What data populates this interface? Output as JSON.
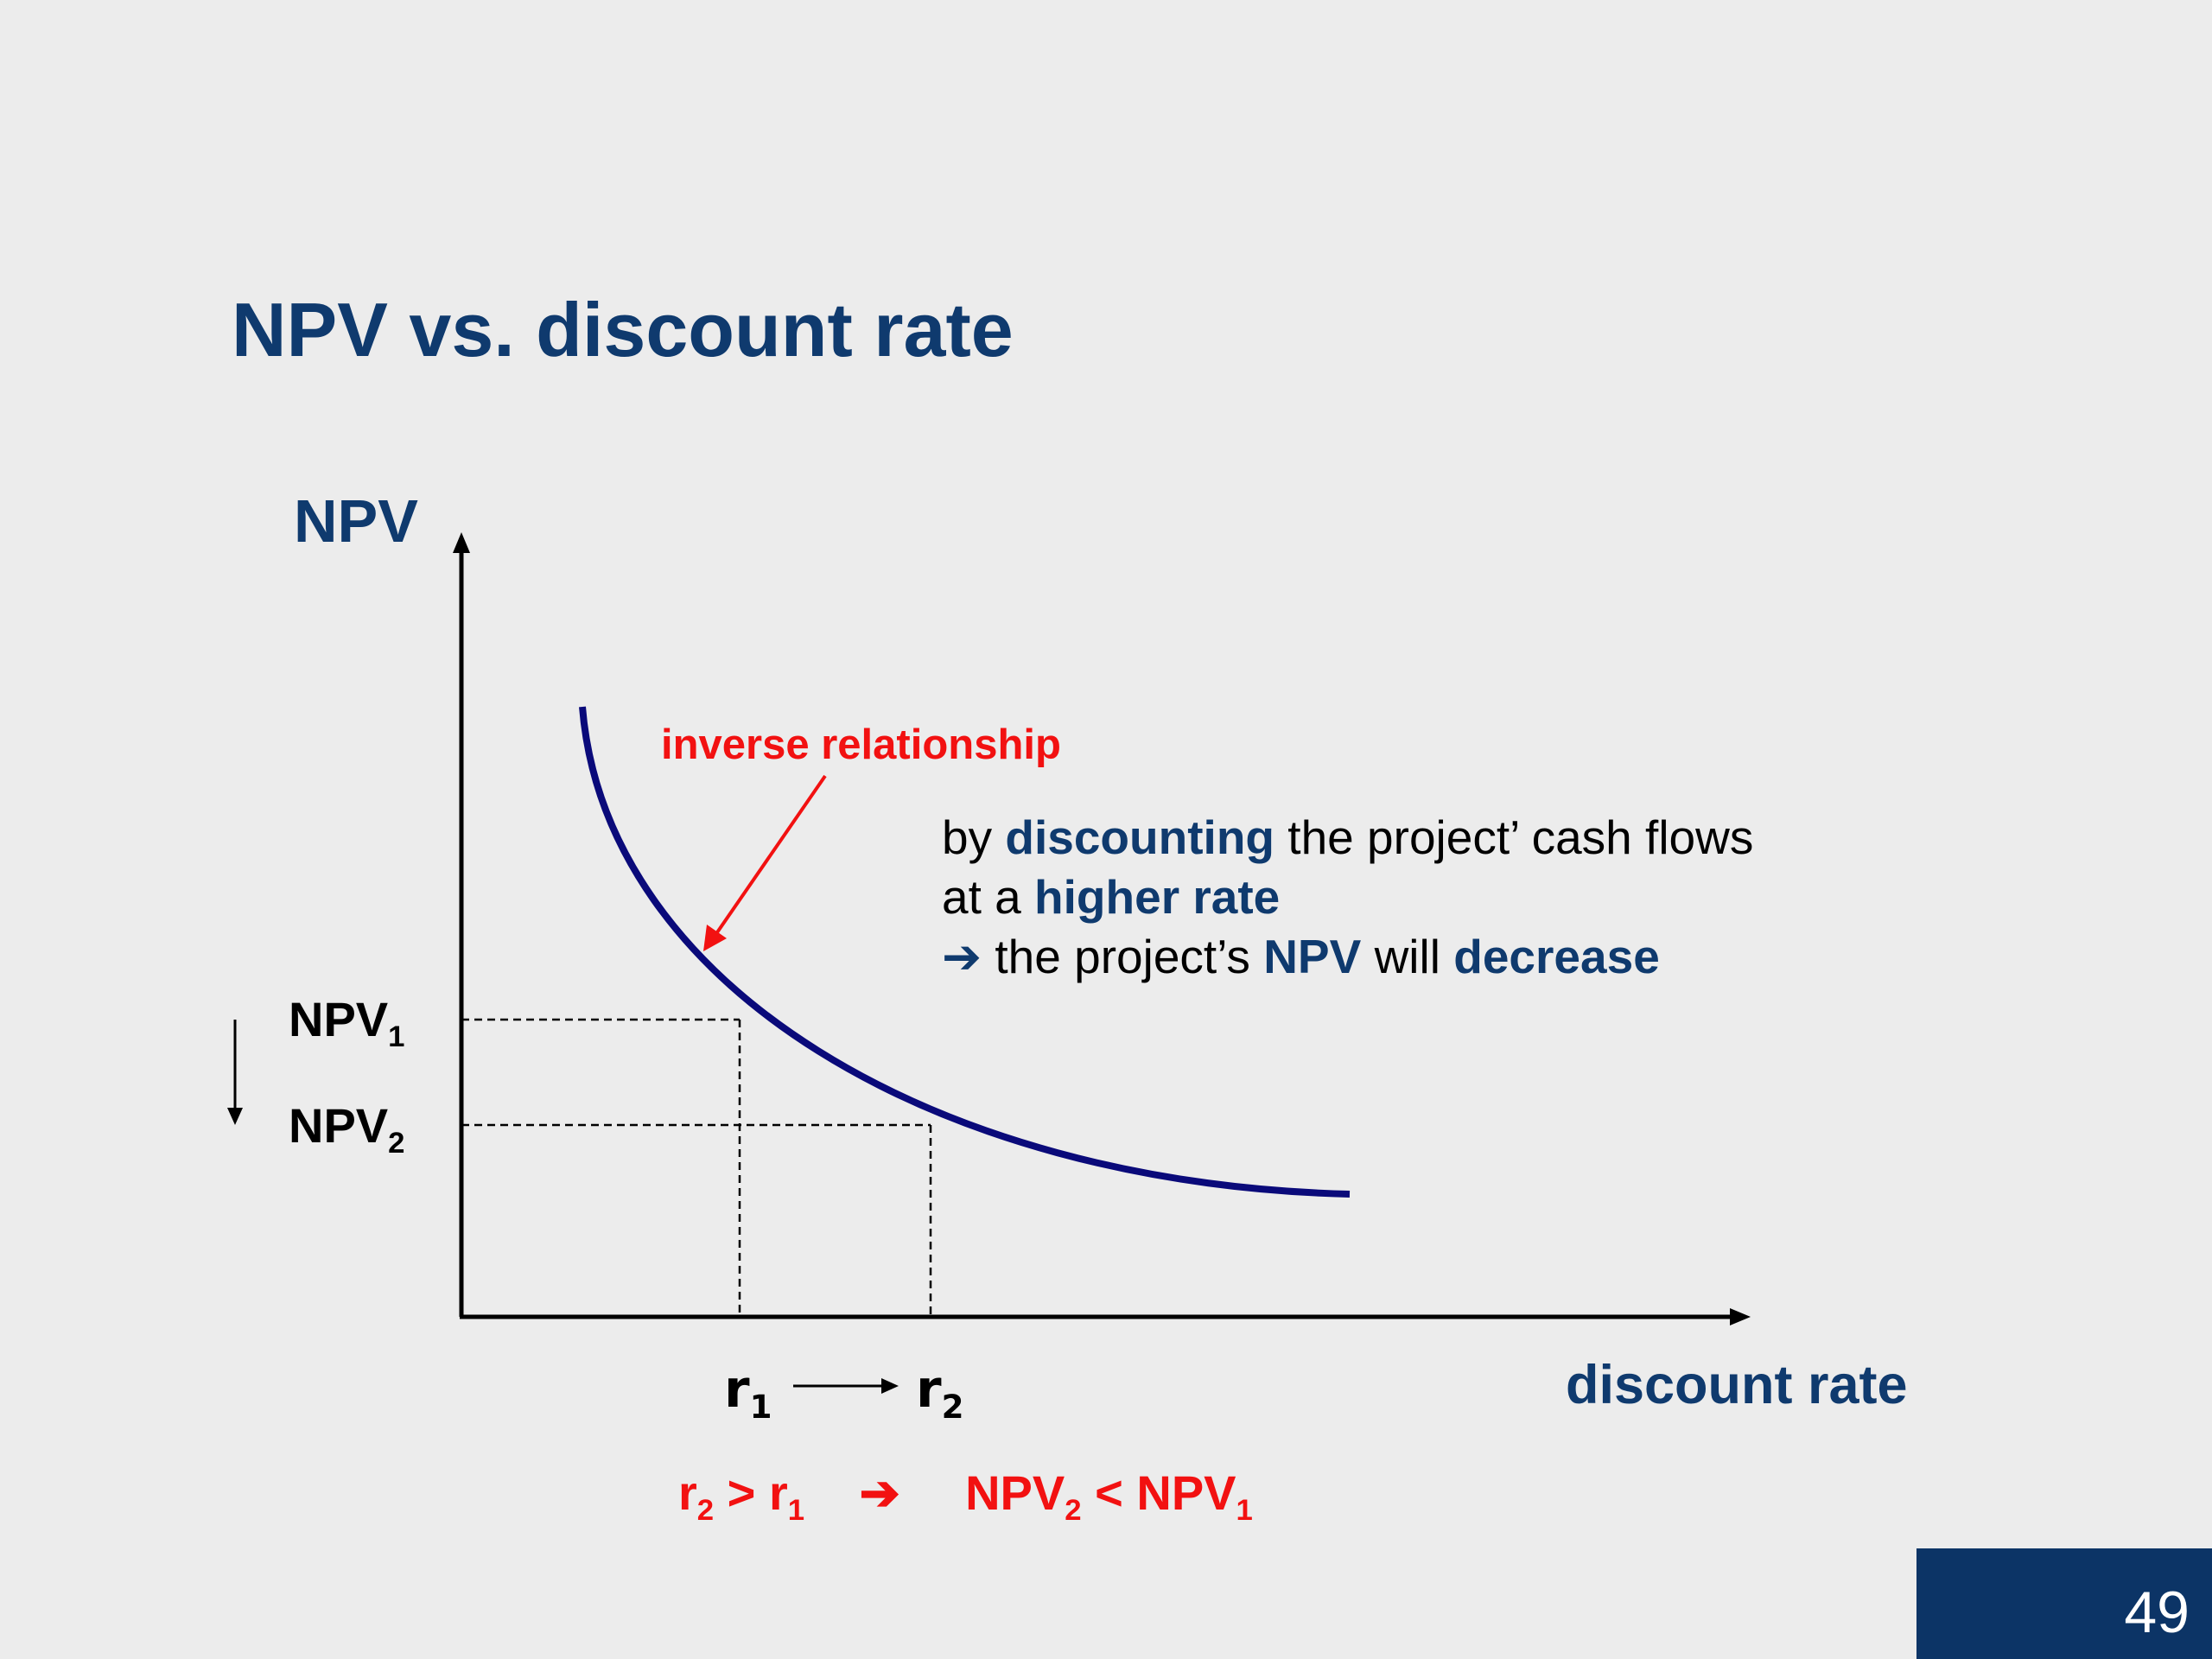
{
  "slide": {
    "title": "NPV vs. discount rate",
    "page_number": "49"
  },
  "axes": {
    "y_label": "NPV",
    "x_label": "discount rate"
  },
  "levels": {
    "npv1": {
      "base": "NPV",
      "sub": "1"
    },
    "npv2": {
      "base": "NPV",
      "sub": "2"
    }
  },
  "rates": {
    "r1": {
      "base": "r",
      "sub": "1"
    },
    "r2": {
      "base": "r",
      "sub": "2"
    }
  },
  "annotation": {
    "label": "inverse relationship"
  },
  "explanation": {
    "line1": {
      "t1": "by ",
      "b1": "discounting",
      "t2": " the project’ cash flows"
    },
    "line2": {
      "t1": "at a ",
      "b1": "higher rate"
    },
    "line3": {
      "arrow": "➔",
      "t1": " the project’s ",
      "b1": "NPV",
      "t2": " will ",
      "b2": "decrease"
    }
  },
  "condition": {
    "left_r2": "r",
    "left_r2_sub": "2",
    "gt": " > ",
    "left_r1": "r",
    "left_r1_sub": "1",
    "arrow": "➔",
    "right_npv2": "NPV",
    "right_npv2_sub": "2",
    "lt": " < ",
    "right_npv1": "NPV",
    "right_npv1_sub": "1"
  },
  "colors": {
    "curve": "#0a0a7a",
    "title": "#0f3a6e",
    "accent_red": "#f21111",
    "page_box": "#0c3466"
  }
}
